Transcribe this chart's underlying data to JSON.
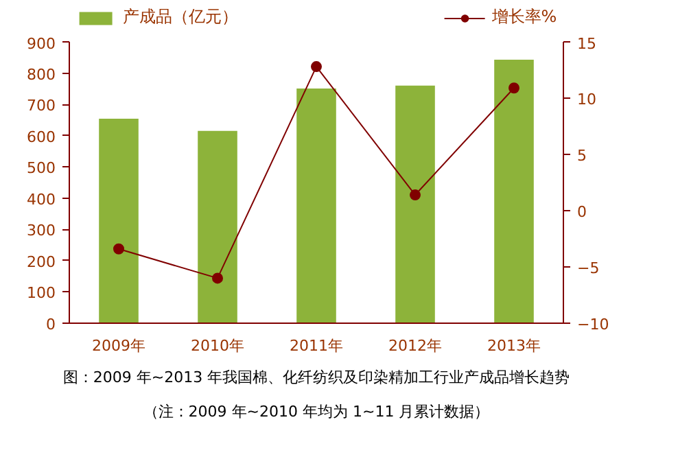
{
  "chart_data": {
    "type": "bar",
    "title": "图：2009 年~2013 年我国棉、化纤纺织及印染精加工行业产成品增长趋势",
    "annotations": [
      "（注：2009 年~2010 年均为 1~11 月累计数据）"
    ],
    "categories": [
      "2009年",
      "2010年",
      "2011年",
      "2012年",
      "2013年"
    ],
    "series": [
      {
        "name": "产成品（亿元）",
        "color": "#8db33a",
        "values": [
          654,
          615,
          751,
          760,
          843
        ]
      },
      {
        "name": "增长率%",
        "type": "line",
        "axis": "y2",
        "color": "#800000",
        "values": [
          -3.4,
          -6.0,
          12.8,
          1.4,
          10.9
        ]
      }
    ],
    "ylim": [
      0,
      900
    ],
    "yticks": [
      0,
      100,
      200,
      300,
      400,
      500,
      600,
      700,
      800,
      900
    ],
    "y2lim": [
      -10,
      15
    ],
    "y2ticks": [
      -10,
      -5,
      0,
      5,
      10,
      15
    ],
    "marker": "circle",
    "legend": "top",
    "grid": false
  }
}
